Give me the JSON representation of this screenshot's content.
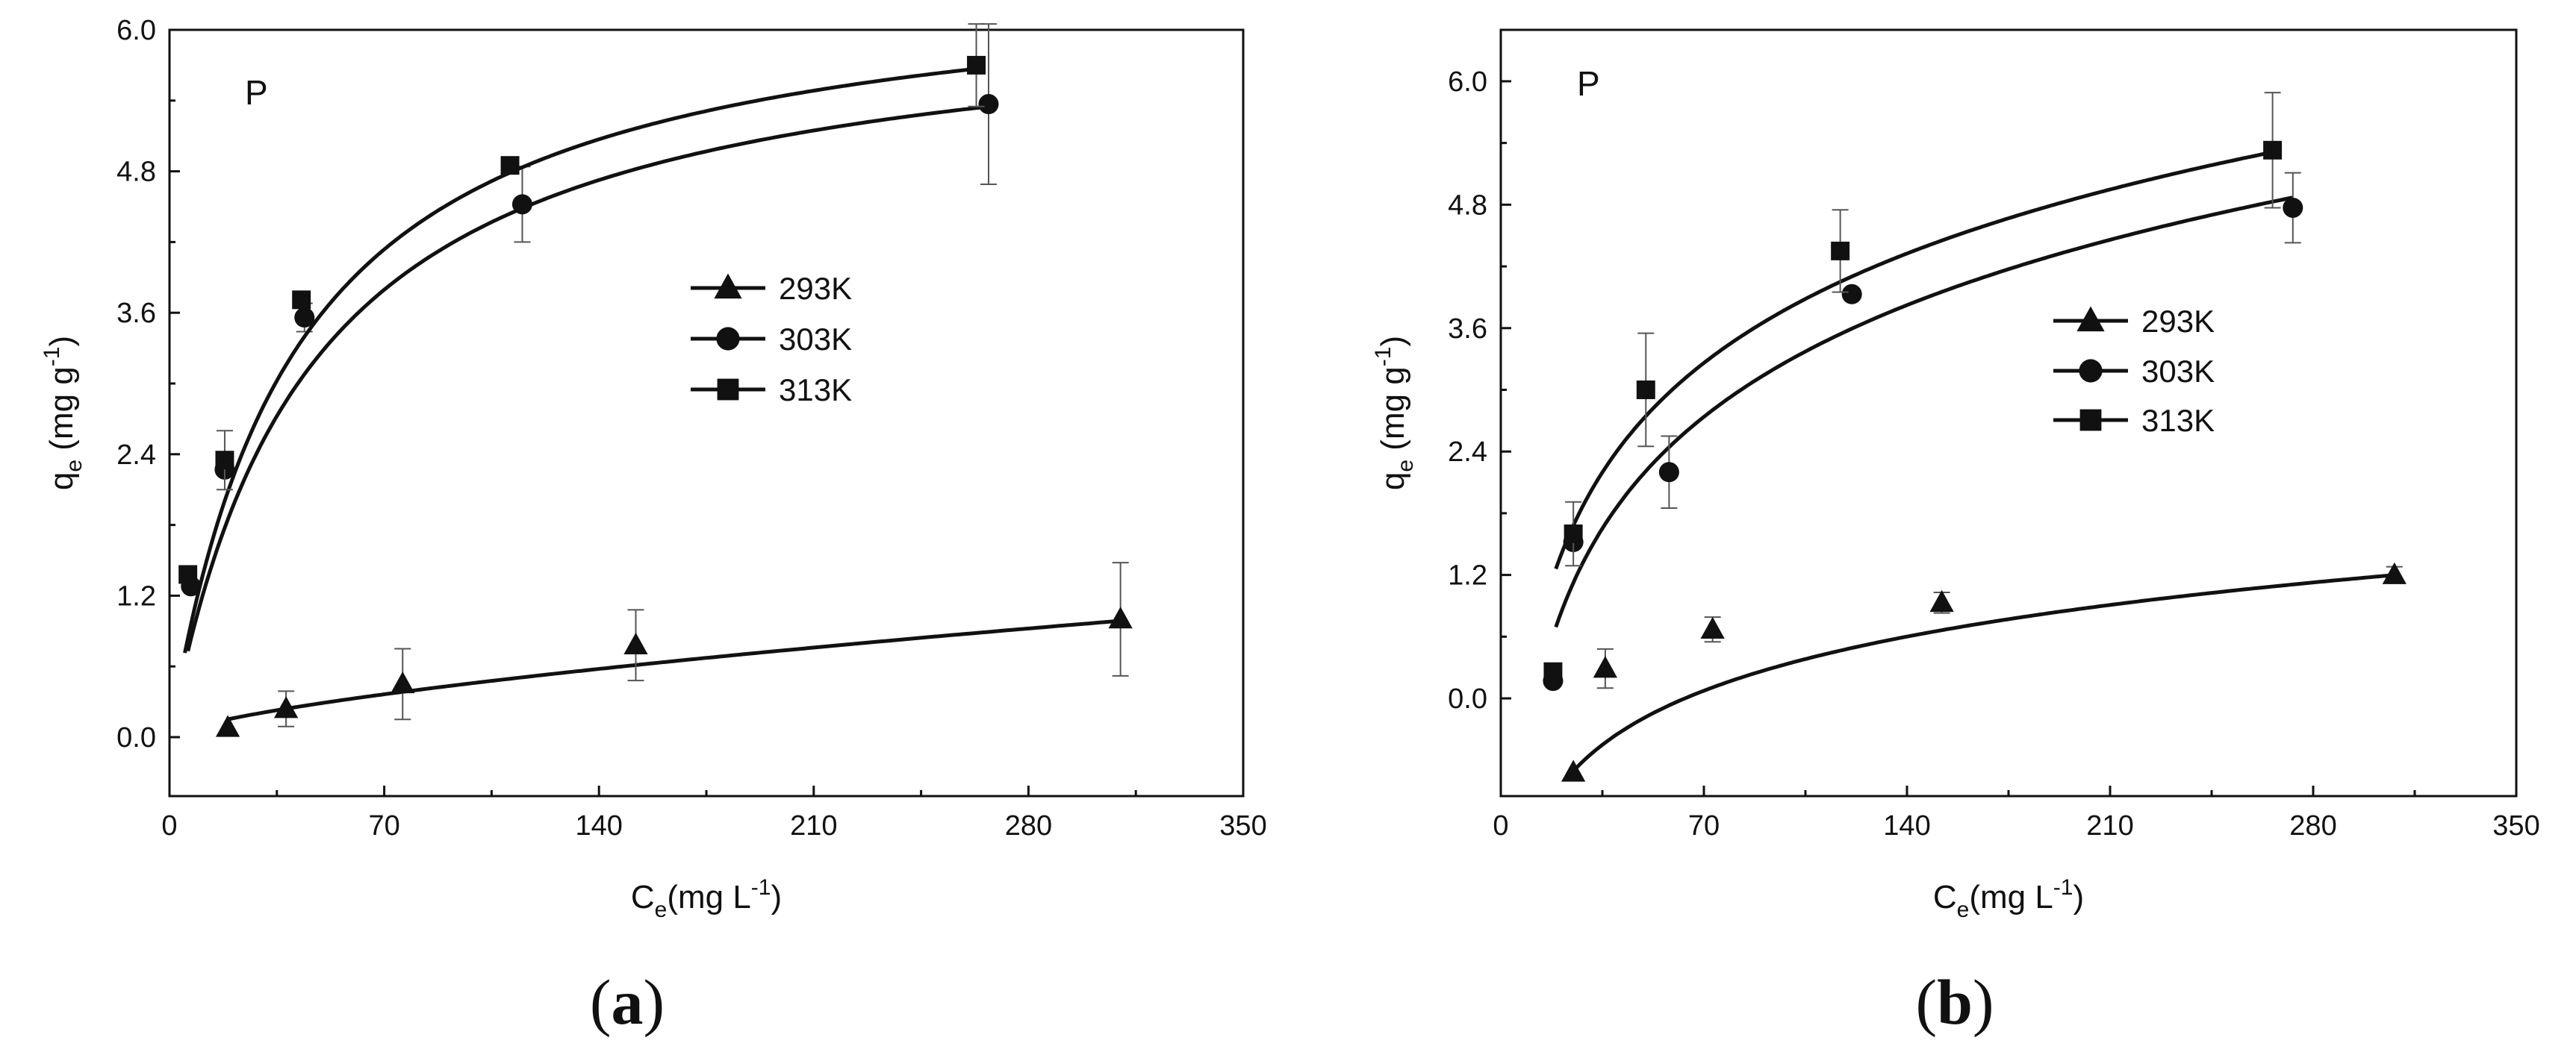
{
  "colors": {
    "ink": "#111111",
    "errorbar": "#555555",
    "background": "#ffffff"
  },
  "chart_data": [
    {
      "type": "scatter",
      "panel": "a",
      "caption": "(a)",
      "caption_letter": "a",
      "tag": "P",
      "xlabel": "C",
      "xlabel_sub": "e",
      "xlabel_unit": "(mg L",
      "xlabel_exp": "-1",
      "xlabel_close": ")",
      "ylabel": "q",
      "ylabel_sub": "e",
      "ylabel_unit": " (mg g",
      "ylabel_exp": "-1",
      "ylabel_close": ")",
      "xlim": [
        0,
        350
      ],
      "ylim": [
        -0.5,
        6.0
      ],
      "xticks": [
        0,
        70,
        140,
        210,
        280,
        350
      ],
      "xtick_labels": [
        "0",
        "70",
        "140",
        "210",
        "280",
        "350"
      ],
      "yticks": [
        0.0,
        1.2,
        2.4,
        3.6,
        4.8,
        6.0
      ],
      "ytick_labels": [
        "0.0",
        "1.2",
        "2.4",
        "3.6",
        "4.8",
        "6.0"
      ],
      "legend": {
        "position": "center-right"
      },
      "series": [
        {
          "name": "293K",
          "marker": "triangle",
          "x": [
            19,
            38,
            76,
            152,
            310
          ],
          "y": [
            0.08,
            0.24,
            0.45,
            0.78,
            1.0
          ],
          "err": [
            0.0,
            0.15,
            0.3,
            0.3,
            0.48
          ],
          "fit": {
            "model": "freundlich",
            "K": 0.021,
            "n": 1.49,
            "x_from": 19,
            "x_to": 310
          }
        },
        {
          "name": "303K",
          "marker": "circle",
          "x": [
            7,
            18,
            44,
            115,
            267
          ],
          "y": [
            1.28,
            2.27,
            3.56,
            4.52,
            5.37
          ],
          "err": [
            0.0,
            0.0,
            0.12,
            0.32,
            0.68
          ],
          "fit": {
            "model": "langmuir",
            "Q": 6.26,
            "KL": 0.022,
            "x_from": 6,
            "x_to": 267
          }
        },
        {
          "name": "313K",
          "marker": "square",
          "x": [
            6,
            18,
            43,
            111,
            263
          ],
          "y": [
            1.38,
            2.35,
            3.71,
            4.85,
            5.7
          ],
          "err": [
            0.0,
            0.25,
            0.0,
            0.0,
            0.35
          ],
          "fit": {
            "model": "langmuir",
            "Q": 6.55,
            "KL": 0.0245,
            "x_from": 5,
            "x_to": 263
          }
        }
      ]
    },
    {
      "type": "scatter",
      "panel": "b",
      "caption": "(b)",
      "caption_letter": "b",
      "tag": "P",
      "xlabel": "C",
      "xlabel_sub": "e",
      "xlabel_unit": "(mg L",
      "xlabel_exp": "-1",
      "xlabel_close": ")",
      "ylabel": "q",
      "ylabel_sub": "e",
      "ylabel_unit": " (mg g",
      "ylabel_exp": "-1",
      "ylabel_close": ")",
      "xlim": [
        0,
        350
      ],
      "ylim": [
        -0.95,
        6.5
      ],
      "xticks": [
        0,
        70,
        140,
        210,
        280,
        350
      ],
      "xtick_labels": [
        "0",
        "70",
        "140",
        "210",
        "280",
        "350"
      ],
      "yticks": [
        0.0,
        1.2,
        2.4,
        3.6,
        4.8,
        6.0
      ],
      "ytick_labels": [
        "0.0",
        "1.2",
        "2.4",
        "3.6",
        "4.8",
        "6.0"
      ],
      "legend": {
        "position": "center-right"
      },
      "series": [
        {
          "name": "293K",
          "marker": "triangle",
          "x": [
            25,
            36,
            73,
            152,
            308
          ],
          "y": [
            -0.72,
            0.29,
            0.67,
            0.93,
            1.2
          ],
          "err": [
            0.0,
            0.19,
            0.12,
            0.1,
            0.08
          ],
          "fit": {
            "model": "logarithmic",
            "a": -3.15,
            "b": 0.759,
            "x_from": 26,
            "x_to": 308
          }
        },
        {
          "name": "303K",
          "marker": "circle",
          "x": [
            18,
            25,
            58,
            121,
            273
          ],
          "y": [
            0.17,
            1.52,
            2.2,
            3.93,
            4.77
          ],
          "err": [
            0.0,
            0.0,
            0.35,
            0.0,
            0.34
          ],
          "fit": {
            "model": "logarithmic",
            "a": -3.92,
            "b": 1.567,
            "x_from": 19,
            "x_to": 273
          }
        },
        {
          "name": "313K",
          "marker": "square",
          "x": [
            18,
            25,
            50,
            117,
            266
          ],
          "y": [
            0.26,
            1.6,
            3.0,
            4.35,
            5.33
          ],
          "err": [
            0.0,
            0.31,
            0.55,
            0.4,
            0.56
          ],
          "fit": {
            "model": "logarithmic",
            "a": -3.26,
            "b": 1.535,
            "x_from": 19,
            "x_to": 266
          }
        }
      ]
    }
  ]
}
